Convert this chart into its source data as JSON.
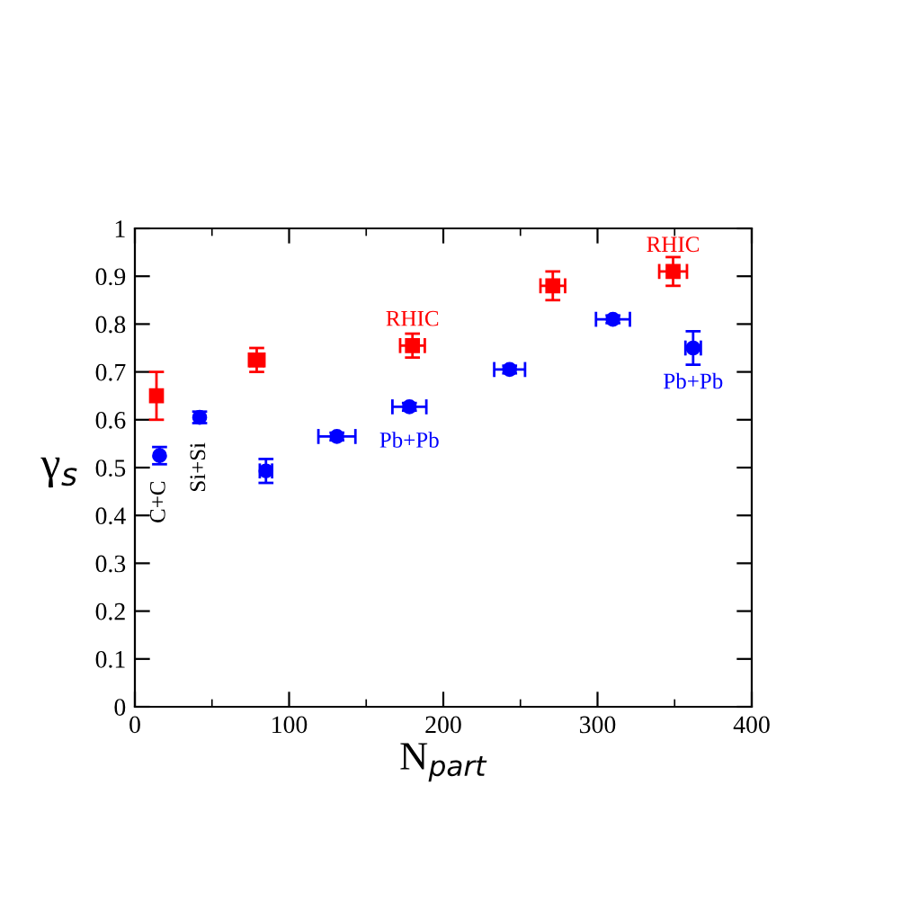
{
  "chart_data": {
    "type": "scatter",
    "xlabel": "N$_{part}$",
    "ylabel": "γ$_{s}$",
    "xlim": [
      0,
      400
    ],
    "xticks": [
      0,
      100,
      200,
      300,
      400
    ],
    "ylim": [
      0,
      1
    ],
    "yticks": [
      0,
      0.1,
      0.2,
      0.3,
      0.4,
      0.5,
      0.6,
      0.7,
      0.8,
      0.9,
      1
    ],
    "grid": false,
    "series": [
      {
        "color": "#ff0000",
        "marker": "square",
        "x": [
          14,
          79,
          180,
          271,
          349
        ],
        "values": [
          0.65,
          0.725,
          0.755,
          0.88,
          0.91
        ],
        "errors": [
          0.05,
          0.025,
          0.025,
          0.03,
          0.03
        ],
        "xerrors": [
          null,
          5,
          8,
          8,
          9
        ]
      },
      {
        "color": "#0000ff",
        "marker": "circle",
        "x": [
          16,
          42,
          85,
          131,
          178,
          243,
          310,
          362
        ],
        "values": [
          0.525,
          0.605,
          0.493,
          0.565,
          0.627,
          0.705,
          0.81,
          0.75
        ],
        "errors": [
          0.018,
          0.012,
          0.025,
          0.008,
          0.008,
          0.008,
          0.008,
          0.035
        ],
        "xerrors": [
          null,
          null,
          4,
          12,
          11,
          10,
          11,
          5
        ]
      }
    ],
    "annotations": [
      {
        "text": "C+C",
        "x": 16,
        "y": 0.525
      },
      {
        "text": "Si+Si",
        "x": 42,
        "y": 0.605
      },
      {
        "text": "RHIC",
        "x": 180,
        "y": 0.755
      },
      {
        "text": "Pb+Pb",
        "x": 178,
        "y": 0.627
      },
      {
        "text": "RHIC",
        "x": 349,
        "y": 0.91
      },
      {
        "text": "Pb+Pb",
        "x": 362,
        "y": 0.75
      }
    ]
  }
}
